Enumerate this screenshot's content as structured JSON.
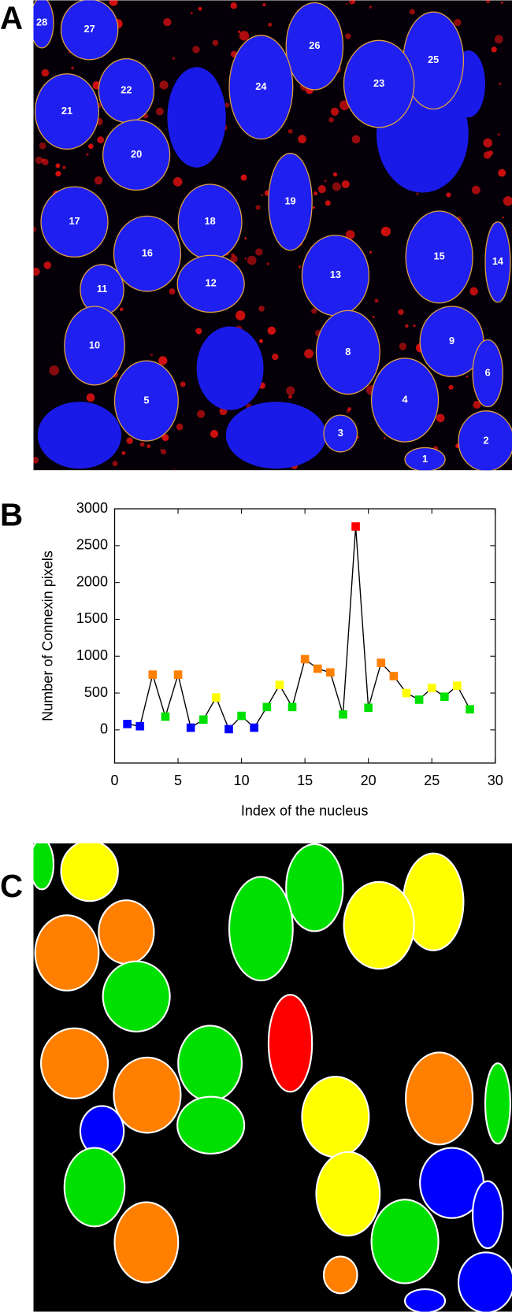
{
  "panel_labels": [
    "A",
    "B",
    "C"
  ],
  "panel_a": {
    "nucleus_labels": [
      "28",
      "27",
      "26",
      "25",
      "24",
      "23",
      "22",
      "21",
      "20",
      "19",
      "18",
      "17",
      "16",
      "15",
      "14",
      "13",
      "12",
      "11",
      "10",
      "9",
      "8",
      "6",
      "5",
      "4",
      "3",
      "2",
      "1"
    ]
  },
  "chart_data": {
    "type": "line",
    "x_label": "Index of the nucleus",
    "y_label": "Number of Connexin pixels",
    "x": [
      1,
      2,
      3,
      4,
      5,
      6,
      7,
      8,
      9,
      10,
      11,
      12,
      13,
      14,
      15,
      16,
      17,
      18,
      19,
      20,
      21,
      22,
      23,
      24,
      25,
      26,
      27,
      28
    ],
    "series": [
      {
        "color": "#000000",
        "values": [
          80,
          50,
          750,
          180,
          750,
          30,
          140,
          440,
          10,
          190,
          30,
          310,
          610,
          310,
          960,
          830,
          780,
          210,
          2760,
          300,
          910,
          730,
          500,
          410,
          570,
          450,
          600,
          280
        ],
        "point_colors": [
          "#0000ff",
          "#0000ff",
          "#ff7f00",
          "#00e000",
          "#ff7f00",
          "#0000ff",
          "#00e000",
          "#ffff00",
          "#0000ff",
          "#00e000",
          "#0000ff",
          "#00e000",
          "#ffff00",
          "#00e000",
          "#ff7f00",
          "#ff7f00",
          "#ff7f00",
          "#00e000",
          "#ff0000",
          "#00e000",
          "#ff7f00",
          "#ff7f00",
          "#ffff00",
          "#00e000",
          "#ffff00",
          "#00e000",
          "#ffff00",
          "#00e000"
        ]
      }
    ],
    "xlim": [
      0,
      30
    ],
    "xticks": [
      0,
      5,
      10,
      15,
      20,
      25,
      30
    ],
    "ylim": [
      -450,
      3000
    ],
    "yticks": [
      0,
      500,
      1000,
      1500,
      2000,
      2500,
      3000
    ],
    "grid": false
  }
}
